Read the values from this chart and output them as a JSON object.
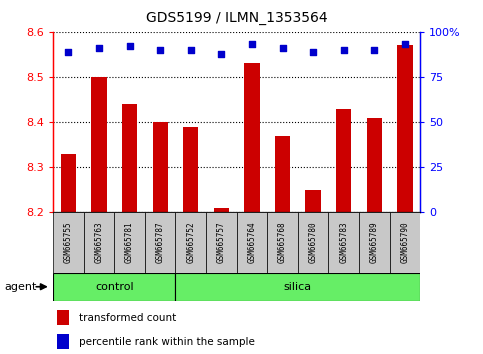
{
  "title": "GDS5199 / ILMN_1353564",
  "categories": [
    "GSM665755",
    "GSM665763",
    "GSM665781",
    "GSM665787",
    "GSM665752",
    "GSM665757",
    "GSM665764",
    "GSM665768",
    "GSM665780",
    "GSM665783",
    "GSM665789",
    "GSM665790"
  ],
  "bar_values": [
    8.33,
    8.5,
    8.44,
    8.4,
    8.39,
    8.21,
    8.53,
    8.37,
    8.25,
    8.43,
    8.41,
    8.57
  ],
  "percentile_values": [
    89,
    91,
    92,
    90,
    90,
    88,
    93,
    91,
    89,
    90,
    90,
    93
  ],
  "bar_color": "#cc0000",
  "percentile_color": "#0000cc",
  "ylim_left": [
    8.2,
    8.6
  ],
  "ylim_right": [
    0,
    100
  ],
  "yticks_left": [
    8.2,
    8.3,
    8.4,
    8.5,
    8.6
  ],
  "yticks_right": [
    0,
    25,
    50,
    75,
    100
  ],
  "ytick_labels_right": [
    "0",
    "25",
    "50",
    "75",
    "100%"
  ],
  "n_control": 4,
  "n_silica": 8,
  "agent_label": "agent",
  "control_label": "control",
  "silica_label": "silica",
  "legend_bar_label": "transformed count",
  "legend_pct_label": "percentile rank within the sample",
  "bar_bottom": 8.2,
  "group_box_color": "#c8c8c8",
  "group_fill": "#66ee66",
  "bar_width": 0.5
}
